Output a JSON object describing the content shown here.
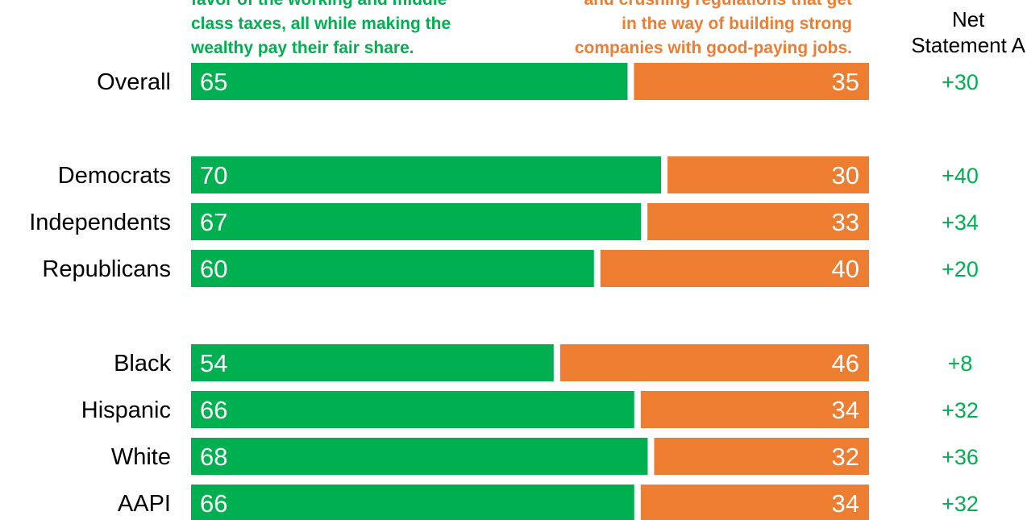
{
  "header": {
    "statement_a_lines": [
      "favor of the working and middle",
      "class taxes, all while making the",
      "wealthy pay their fair share."
    ],
    "statement_b_lines": [
      "and crushing regulations that get",
      "in the way of building strong",
      "companies with good-paying jobs."
    ],
    "net_label_lines": [
      "Net",
      "Statement A"
    ]
  },
  "colors": {
    "statement_a": "#00b050",
    "statement_b": "#ed7d31",
    "net_text": "#00b050"
  },
  "chart_data": {
    "type": "bar",
    "orientation": "horizontal",
    "stacked": true,
    "categories": [
      "Overall",
      "Democrats",
      "Independents",
      "Republicans",
      "Black",
      "Hispanic",
      "White",
      "AAPI"
    ],
    "groups": [
      [
        "Overall"
      ],
      [
        "Democrats",
        "Independents",
        "Republicans"
      ],
      [
        "Black",
        "Hispanic",
        "White",
        "AAPI"
      ]
    ],
    "series": [
      {
        "values": [
          65,
          70,
          67,
          60,
          54,
          66,
          68,
          66
        ]
      },
      {
        "values": [
          35,
          30,
          33,
          40,
          46,
          34,
          32,
          34
        ]
      }
    ],
    "net_values": [
      "+30",
      "+40",
      "+34",
      "+20",
      "+8",
      "+32",
      "+36",
      "+32"
    ],
    "xlim": [
      0,
      100
    ]
  }
}
